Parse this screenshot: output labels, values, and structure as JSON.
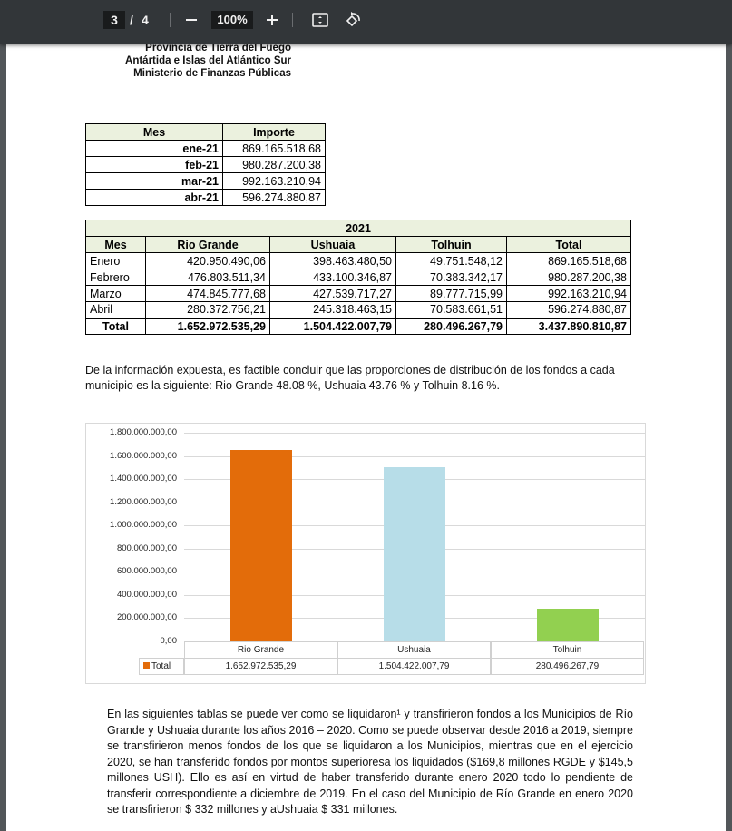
{
  "toolbar": {
    "current_page": "3",
    "page_sep": "/",
    "total_pages": "4",
    "zoom": "100%"
  },
  "header": {
    "line1": "Provincia de Tierra del Fuego",
    "line2": "Antártida e Islas del Atlántico Sur",
    "line3": "Ministerio de Finanzas Públicas"
  },
  "table1": {
    "headers": [
      "Mes",
      "Importe"
    ],
    "rows": [
      [
        "ene-21",
        "869.165.518,68"
      ],
      [
        "feb-21",
        "980.287.200,38"
      ],
      [
        "mar-21",
        "992.163.210,94"
      ],
      [
        "abr-21",
        "596.274.880,87"
      ]
    ]
  },
  "table2": {
    "title": "2021",
    "headers": [
      "Mes",
      "Rio Grande",
      "Ushuaia",
      "Tolhuin",
      "Total"
    ],
    "rows": [
      [
        "Enero",
        "420.950.490,06",
        "398.463.480,50",
        "49.751.548,12",
        "869.165.518,68"
      ],
      [
        "Febrero",
        "476.803.511,34",
        "433.100.346,87",
        "70.383.342,17",
        "980.287.200,38"
      ],
      [
        "Marzo",
        "474.845.777,68",
        "427.539.717,27",
        "89.777.715,99",
        "992.163.210,94"
      ],
      [
        "Abril",
        "280.372.756,21",
        "245.318.463,15",
        "70.583.661,51",
        "596.274.880,87"
      ]
    ],
    "total": [
      "Total",
      "1.652.972.535,29",
      "1.504.422.007,79",
      "280.496.267,79",
      "3.437.890.810,87"
    ]
  },
  "paragraph1": "De la información expuesta, es factible concluir que las proporciones de distribución de los fondos a cada municipio es la siguiente: Rio Grande 48.08 %, Ushuaia 43.76 % y Tolhuin 8.16 %.",
  "paragraph2": "En las siguientes tablas se puede ver como se liquidaron¹ y transfirieron fondos  a  los Municipios de Río Grande y Ushuaia durante los años 2016 – 2020. Como se puede observar desde 2016 a 2019, siempre se transfirieron menos fondos de los que se liquidaron a los Municipios, mientras que en el ejercicio 2020, se han transferido fondos por montos superioresa los liquidados ($169,8 millones RGDE y $145,5 millones USH). Ello es así en virtud de haber transferido durante enero 2020 todo lo pendiente de transferir correspondiente a diciembre de 2019. En el caso del Municipio de Río Grande en enero 2020 se transfirieron $ 332 millones y aUshuaia $ 331 millones.",
  "chart_data": {
    "type": "bar",
    "categories": [
      "Rio Grande",
      "Ushuaia",
      "Tolhuin"
    ],
    "values": [
      1652972535.29,
      1504422007.79,
      280496267.79
    ],
    "value_labels": [
      "1.652.972.535,29",
      "1.504.422.007,79",
      "280.496.267,79"
    ],
    "series_name": "Total",
    "colors": [
      "#e36c0a",
      "#b7dde8",
      "#92d050"
    ],
    "legend_color": "#e36c0a",
    "ylim": [
      0,
      1800000000
    ],
    "yticks": [
      "0,00",
      "200.000.000,00",
      "400.000.000,00",
      "600.000.000,00",
      "800.000.000,00",
      "1.000.000.000,00",
      "1.200.000.000,00",
      "1.400.000.000,00",
      "1.600.000.000,00",
      "1.800.000.000,00"
    ],
    "grid": true,
    "legend": "data-table"
  }
}
